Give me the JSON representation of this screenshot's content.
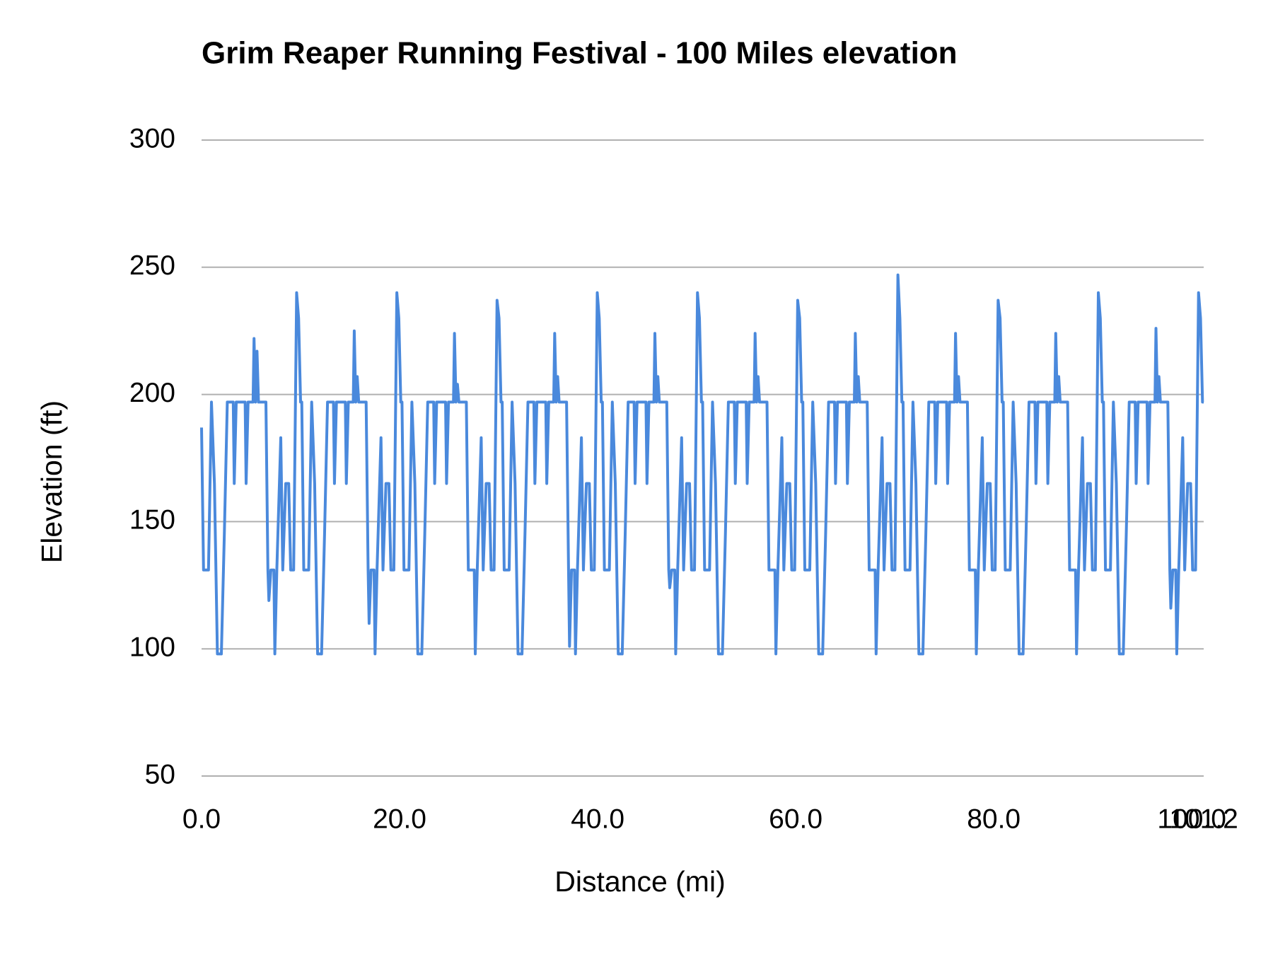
{
  "chart_data": {
    "type": "line",
    "title": "Grim Reaper Running Festival - 100 Miles elevation",
    "x_label": "Distance (mi)",
    "y_label": "Elevation (ft)",
    "color": "#4a89dc",
    "grid": true,
    "xlim": [
      0,
      101.2
    ],
    "ylim": [
      50,
      300
    ],
    "xticks": [
      {
        "value": 0,
        "label": "0.0"
      },
      {
        "value": 20,
        "label": "20.0"
      },
      {
        "value": 40,
        "label": "40.0"
      },
      {
        "value": 60,
        "label": "60.0"
      },
      {
        "value": 80,
        "label": "80.0"
      },
      {
        "value": 100,
        "label": "100.0"
      },
      {
        "value": 101.2,
        "label": "101.2"
      }
    ],
    "yticks": [
      50,
      100,
      150,
      200,
      250,
      300
    ],
    "x": [
      0,
      0.2,
      0.7,
      1,
      1.3,
      1.6,
      2,
      2.3,
      2.6,
      3.2,
      3.3,
      3.5,
      4.4,
      4.5,
      4.7,
      5.2,
      5.3,
      5.45,
      5.6,
      5.75,
      6.5,
      6.7,
      6.8,
      7,
      7.3,
      7.4,
      7.6,
      8,
      8.2,
      8.5,
      8.8,
      9,
      9.3,
      9.6,
      9.8,
      10,
      10.12,
      10.32,
      10.82,
      11.12,
      11.42,
      11.72,
      12.12,
      12.42,
      12.72,
      13.32,
      13.42,
      13.62,
      14.52,
      14.62,
      14.82,
      15.32,
      15.42,
      15.57,
      15.72,
      15.87,
      16.62,
      16.82,
      16.92,
      17.12,
      17.42,
      17.52,
      17.72,
      18.12,
      18.32,
      18.62,
      18.92,
      19.12,
      19.42,
      19.72,
      19.92,
      20.12,
      20.24,
      20.44,
      20.94,
      21.24,
      21.54,
      21.84,
      22.24,
      22.54,
      22.84,
      23.44,
      23.54,
      23.74,
      24.64,
      24.74,
      24.94,
      25.44,
      25.54,
      25.69,
      25.84,
      25.99,
      26.74,
      26.94,
      27.04,
      27.24,
      27.54,
      27.64,
      27.84,
      28.24,
      28.44,
      28.74,
      29.04,
      29.24,
      29.54,
      29.84,
      30.04,
      30.24,
      30.36,
      30.56,
      31.06,
      31.36,
      31.66,
      31.96,
      32.36,
      32.66,
      32.96,
      33.56,
      33.66,
      33.86,
      34.76,
      34.86,
      35.06,
      35.56,
      35.66,
      35.81,
      35.96,
      36.11,
      36.86,
      37.06,
      37.16,
      37.36,
      37.66,
      37.76,
      37.96,
      38.36,
      38.56,
      38.86,
      39.16,
      39.36,
      39.66,
      39.96,
      40.16,
      40.36,
      40.48,
      40.68,
      41.18,
      41.48,
      41.78,
      42.08,
      42.48,
      42.78,
      43.08,
      43.68,
      43.78,
      43.98,
      44.88,
      44.98,
      45.18,
      45.68,
      45.78,
      45.93,
      46.08,
      46.23,
      46.98,
      47.18,
      47.28,
      47.48,
      47.78,
      47.88,
      48.08,
      48.48,
      48.68,
      48.98,
      49.28,
      49.48,
      49.78,
      50.08,
      50.28,
      50.48,
      50.6,
      50.8,
      51.3,
      51.6,
      51.9,
      52.2,
      52.6,
      52.9,
      53.2,
      53.8,
      53.9,
      54.1,
      55,
      55.1,
      55.3,
      55.8,
      55.9,
      56.05,
      56.2,
      56.35,
      57.1,
      57.3,
      57.4,
      57.6,
      57.9,
      58,
      58.2,
      58.6,
      58.8,
      59.1,
      59.4,
      59.6,
      59.9,
      60.2,
      60.4,
      60.6,
      60.72,
      60.92,
      61.42,
      61.72,
      62.02,
      62.32,
      62.72,
      63.02,
      63.32,
      63.92,
      64.02,
      64.22,
      65.12,
      65.22,
      65.42,
      65.92,
      66.02,
      66.17,
      66.32,
      66.47,
      67.22,
      67.42,
      67.52,
      67.72,
      68.02,
      68.12,
      68.32,
      68.72,
      68.92,
      69.22,
      69.52,
      69.72,
      70.02,
      70.32,
      70.52,
      70.72,
      70.84,
      71.04,
      71.54,
      71.84,
      72.14,
      72.44,
      72.84,
      73.14,
      73.44,
      74.04,
      74.14,
      74.34,
      75.24,
      75.34,
      75.54,
      76.04,
      76.14,
      76.29,
      76.44,
      76.59,
      77.34,
      77.54,
      77.64,
      77.84,
      78.14,
      78.24,
      78.44,
      78.84,
      79.04,
      79.34,
      79.64,
      79.84,
      80.14,
      80.44,
      80.64,
      80.84,
      80.96,
      81.16,
      81.66,
      81.96,
      82.26,
      82.56,
      82.96,
      83.26,
      83.56,
      84.16,
      84.26,
      84.46,
      85.36,
      85.46,
      85.66,
      86.16,
      86.26,
      86.41,
      86.56,
      86.71,
      87.46,
      87.66,
      87.76,
      87.96,
      88.26,
      88.36,
      88.56,
      88.96,
      89.16,
      89.46,
      89.76,
      89.96,
      90.26,
      90.56,
      90.76,
      90.96,
      91.08,
      91.28,
      91.78,
      92.08,
      92.38,
      92.68,
      93.08,
      93.38,
      93.68,
      94.28,
      94.38,
      94.58,
      95.48,
      95.58,
      95.78,
      96.28,
      96.38,
      96.53,
      96.68,
      96.83,
      97.58,
      97.78,
      97.88,
      98.08,
      98.38,
      98.48,
      98.68,
      99.08,
      99.28,
      99.58,
      99.88,
      100.08,
      100.38,
      100.68,
      100.88,
      101.08,
      101.2
    ],
    "values": [
      187,
      131,
      131,
      197,
      165,
      98,
      98,
      145,
      197,
      197,
      165,
      197,
      197,
      165,
      197,
      197,
      222,
      197,
      217,
      197,
      197,
      131,
      119,
      131,
      131,
      98,
      131,
      183,
      131,
      165,
      165,
      131,
      131,
      240,
      230,
      197,
      197,
      131,
      131,
      197,
      165,
      98,
      98,
      145,
      197,
      197,
      165,
      197,
      197,
      165,
      197,
      197,
      225,
      197,
      207,
      197,
      197,
      131,
      110,
      131,
      131,
      98,
      131,
      183,
      131,
      165,
      165,
      131,
      131,
      240,
      230,
      197,
      197,
      131,
      131,
      197,
      165,
      98,
      98,
      145,
      197,
      197,
      165,
      197,
      197,
      165,
      197,
      197,
      224,
      197,
      204,
      197,
      197,
      131,
      131,
      131,
      131,
      98,
      131,
      183,
      131,
      165,
      165,
      131,
      131,
      237,
      230,
      197,
      197,
      131,
      131,
      197,
      165,
      98,
      98,
      145,
      197,
      197,
      165,
      197,
      197,
      165,
      197,
      197,
      224,
      197,
      207,
      197,
      197,
      131,
      101,
      131,
      131,
      98,
      131,
      183,
      131,
      165,
      165,
      131,
      131,
      240,
      230,
      197,
      197,
      131,
      131,
      197,
      165,
      98,
      98,
      145,
      197,
      197,
      165,
      197,
      197,
      165,
      197,
      197,
      224,
      197,
      207,
      197,
      197,
      131,
      124,
      131,
      131,
      98,
      131,
      183,
      131,
      165,
      165,
      131,
      131,
      240,
      230,
      197,
      197,
      131,
      131,
      197,
      165,
      98,
      98,
      145,
      197,
      197,
      165,
      197,
      197,
      165,
      197,
      197,
      224,
      197,
      207,
      197,
      197,
      131,
      131,
      131,
      131,
      98,
      131,
      183,
      131,
      165,
      165,
      131,
      131,
      237,
      230,
      197,
      197,
      131,
      131,
      197,
      165,
      98,
      98,
      145,
      197,
      197,
      165,
      197,
      197,
      165,
      197,
      197,
      224,
      197,
      207,
      197,
      197,
      131,
      131,
      131,
      131,
      98,
      131,
      183,
      131,
      165,
      165,
      131,
      131,
      247,
      230,
      197,
      197,
      131,
      131,
      197,
      165,
      98,
      98,
      145,
      197,
      197,
      165,
      197,
      197,
      165,
      197,
      197,
      224,
      197,
      207,
      197,
      197,
      131,
      131,
      131,
      131,
      98,
      131,
      183,
      131,
      165,
      165,
      131,
      131,
      237,
      230,
      197,
      197,
      131,
      131,
      197,
      165,
      98,
      98,
      145,
      197,
      197,
      165,
      197,
      197,
      165,
      197,
      197,
      224,
      197,
      207,
      197,
      197,
      131,
      131,
      131,
      131,
      98,
      131,
      183,
      131,
      165,
      165,
      131,
      131,
      240,
      230,
      197,
      197,
      131,
      131,
      197,
      165,
      98,
      98,
      145,
      197,
      197,
      165,
      197,
      197,
      165,
      197,
      197,
      226,
      197,
      207,
      197,
      197,
      131,
      116,
      131,
      131,
      98,
      131,
      183,
      131,
      165,
      165,
      131,
      131,
      240,
      230,
      197,
      197
    ]
  }
}
